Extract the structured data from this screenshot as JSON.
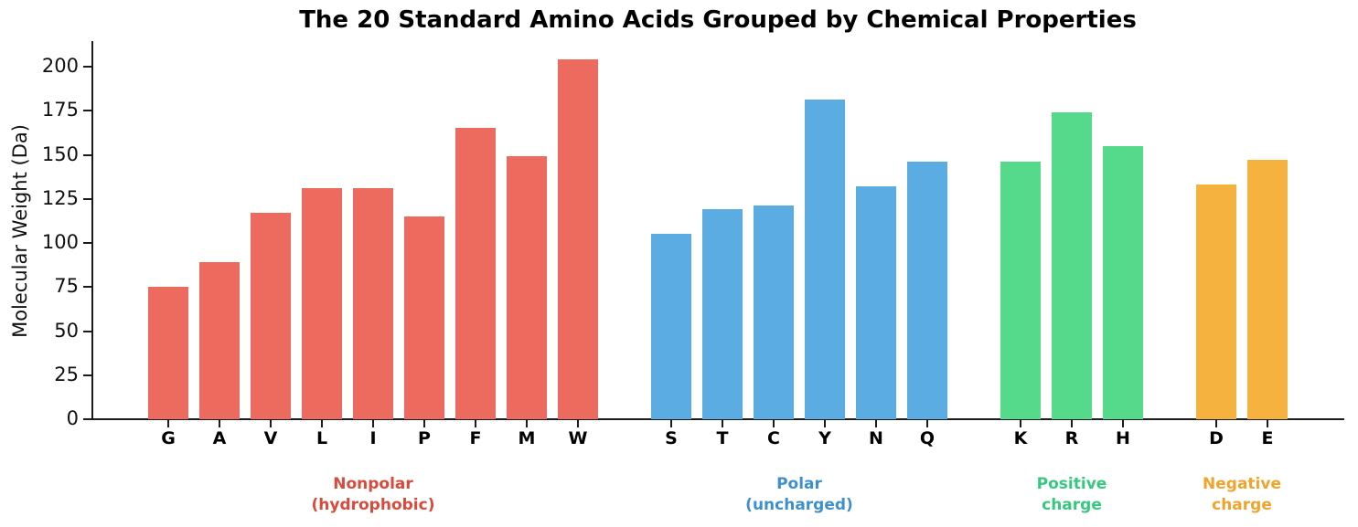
{
  "title": "The 20 Standard Amino Acids Grouped by Chemical Properties",
  "chart_data": {
    "type": "bar",
    "title": "The 20 Standard Amino Acids Grouped by Chemical Properties",
    "xlabel": "",
    "ylabel": "Molecular Weight (Da)",
    "ylim": [
      0,
      215
    ],
    "grid": false,
    "legend_position": "none",
    "y_ticks": [
      0,
      25,
      50,
      75,
      100,
      125,
      150,
      175,
      200
    ],
    "groups": [
      {
        "label": "Nonpolar\n(hydrophobic)",
        "bar_color": "#ED6B5E",
        "label_color": "#D9493C",
        "categories": [
          "G",
          "A",
          "V",
          "L",
          "I",
          "P",
          "F",
          "M",
          "W"
        ],
        "values": [
          75.07,
          89.09,
          117.15,
          131.17,
          131.17,
          115.13,
          165.19,
          149.21,
          204.23
        ]
      },
      {
        "label": "Polar\n(uncharged)",
        "bar_color": "#5BACE2",
        "label_color": "#3E90CC",
        "categories": [
          "S",
          "T",
          "C",
          "Y",
          "N",
          "Q"
        ],
        "values": [
          105.09,
          119.12,
          121.16,
          181.19,
          132.12,
          146.15
        ]
      },
      {
        "label": "Positive\ncharge",
        "bar_color": "#55D98B",
        "label_color": "#35C97F",
        "categories": [
          "K",
          "R",
          "H"
        ],
        "values": [
          146.19,
          174.2,
          155.15
        ]
      },
      {
        "label": "Negative\ncharge",
        "bar_color": "#F5B23E",
        "label_color": "#EFA42D",
        "categories": [
          "D",
          "E"
        ],
        "values": [
          133.1,
          147.13
        ]
      }
    ]
  }
}
